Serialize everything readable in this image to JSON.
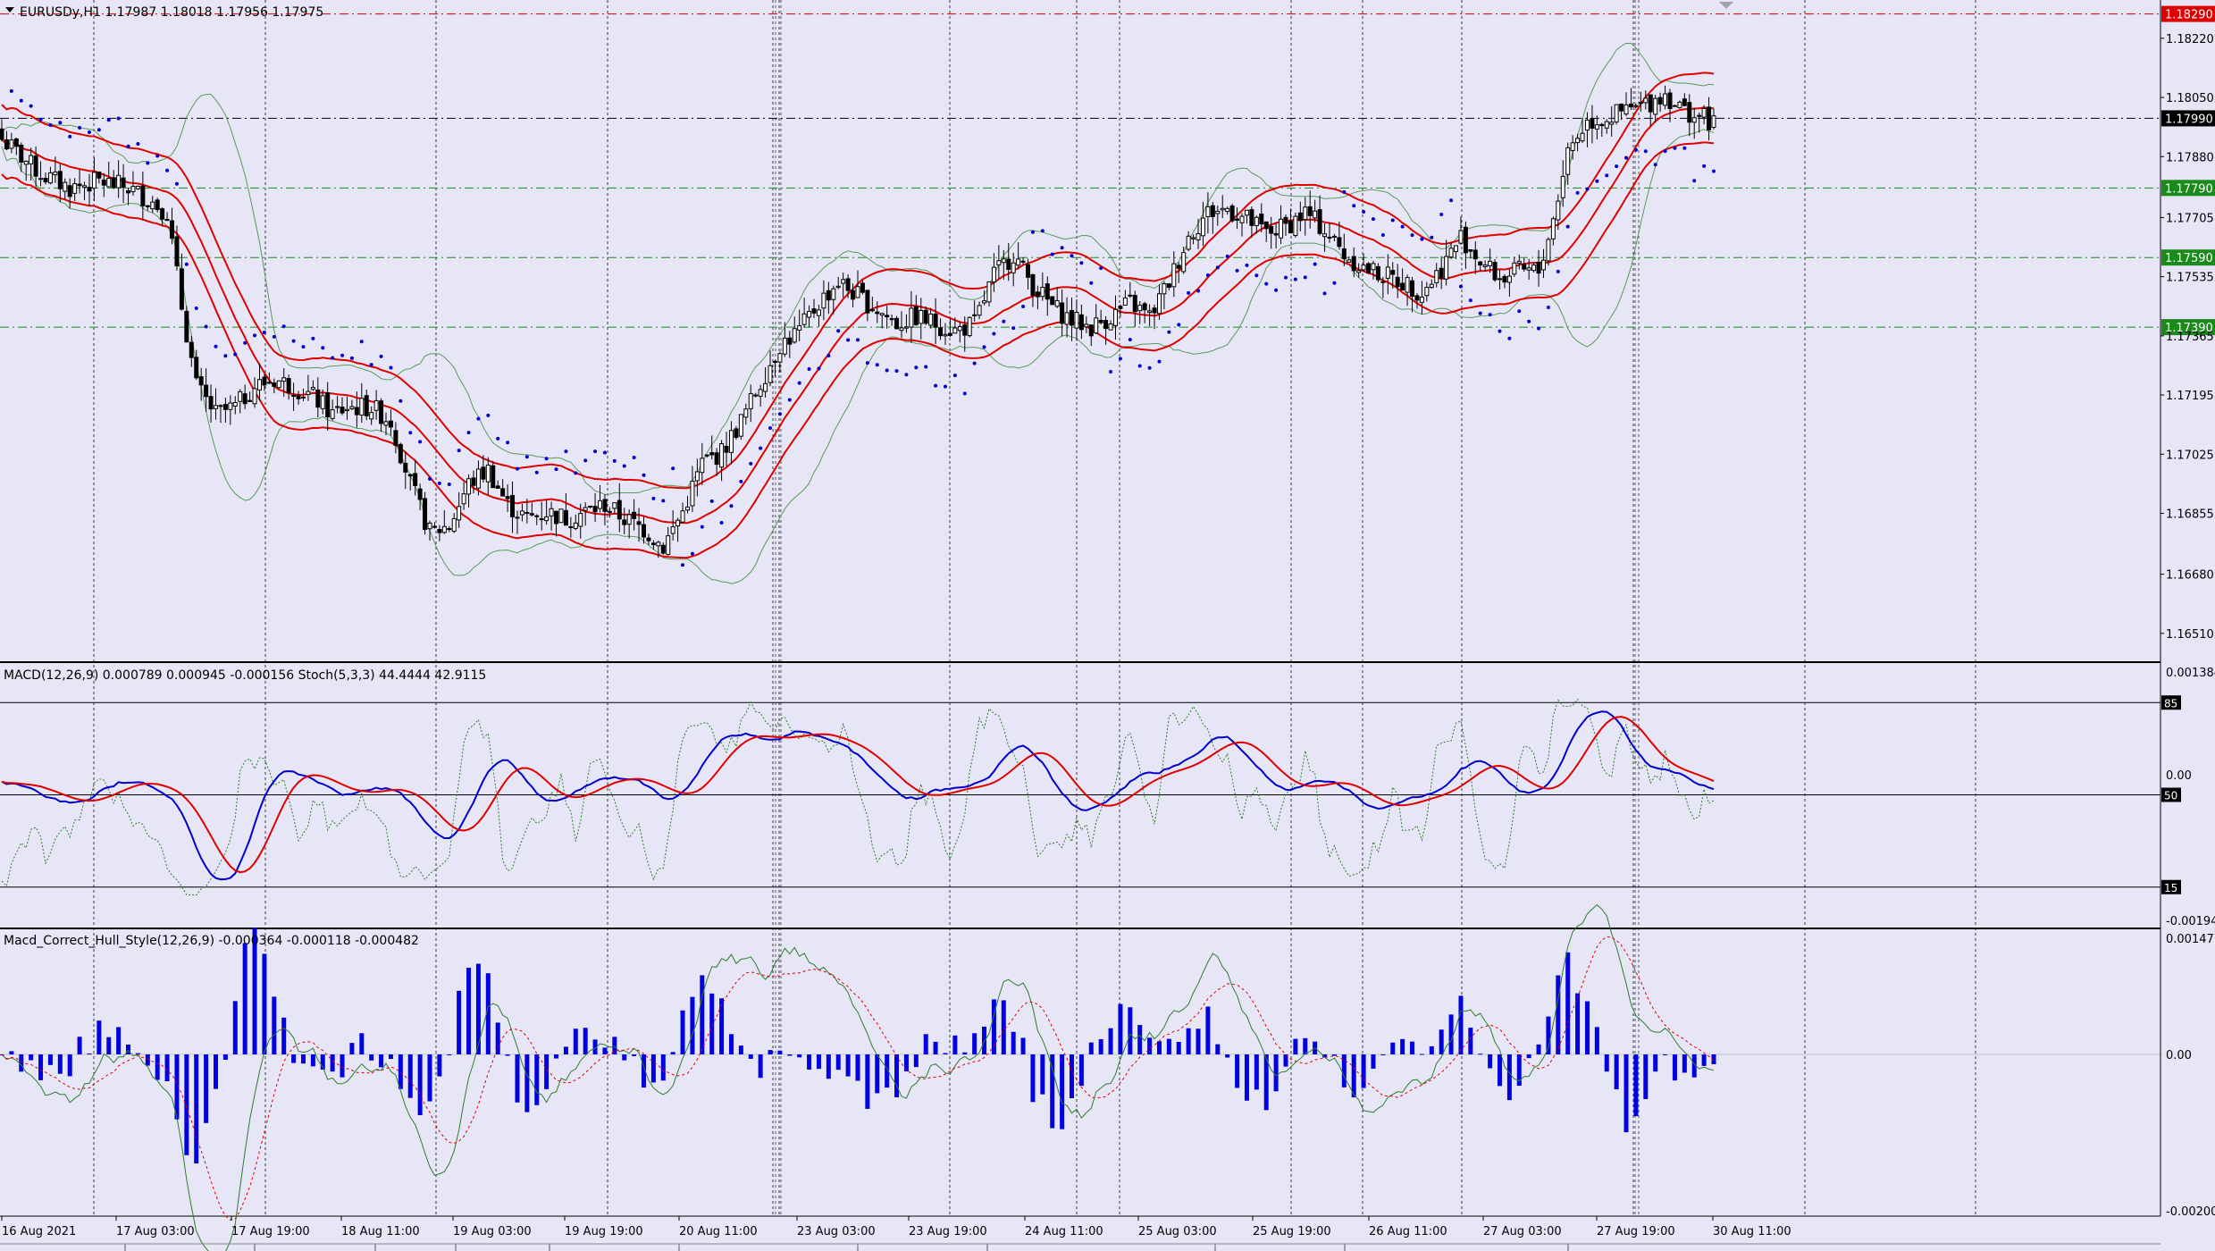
{
  "symbol_header": "EURUSDy,H1  1.17987 1.18018 1.17956 1.17975",
  "macd_header": "MACD(12,26,9) 0.000789 0.000945 -0.000156  Stoch(5,3,3) 44.4444 42.9115",
  "hull_header": "Macd_Correct_Hull_Style(12,26,9) -0.000364 -0.000118 -0.000482",
  "colors": {
    "background": "#e6e6f6",
    "candle_body": "#000000",
    "bollinger": "#5a9a5a",
    "envelope": "#e00000",
    "parabolic_sar": "#0000cc",
    "macd_main": "#0000cc",
    "macd_signal": "#e00000",
    "stoch": "#2e7d2e",
    "histogram": "#0000e0",
    "level_red": "#e00000",
    "level_green": "#1a8a1a",
    "current_price_bg": "#000000"
  },
  "chart_data": [
    {
      "type": "candlestick",
      "panel": "main",
      "title": "EURUSDy,H1",
      "ohlc_last": {
        "open": 1.17987,
        "high": 1.18018,
        "low": 1.17956,
        "close": 1.17975
      },
      "ylim": [
        1.1643,
        1.1833
      ],
      "y_ticks": [
        "1.18220",
        "1.18050",
        "1.17880",
        "1.17705",
        "1.17535",
        "1.17365",
        "1.17195",
        "1.17025",
        "1.16855",
        "1.16680",
        "1.16510"
      ],
      "x_ticks": [
        "16 Aug 2021",
        "17 Aug 03:00",
        "17 Aug 19:00",
        "18 Aug 11:00",
        "19 Aug 03:00",
        "19 Aug 19:00",
        "20 Aug 11:00",
        "23 Aug 03:00",
        "23 Aug 19:00",
        "24 Aug 11:00",
        "25 Aug 03:00",
        "25 Aug 19:00",
        "26 Aug 11:00",
        "27 Aug 03:00",
        "27 Aug 19:00",
        "30 Aug 11:00"
      ],
      "horizontal_levels": [
        {
          "value": 1.1829,
          "label": "1.18290",
          "color": "red"
        },
        {
          "value": 1.1799,
          "label": "1.17990",
          "color": "current"
        },
        {
          "value": 1.1779,
          "label": "1.17790",
          "color": "green"
        },
        {
          "value": 1.1759,
          "label": "1.17590",
          "color": "green"
        },
        {
          "value": 1.1739,
          "label": "1.17390",
          "color": "green"
        }
      ],
      "close_path": [
        [
          0,
          1.1793
        ],
        [
          8,
          1.1783
        ],
        [
          14,
          1.1779
        ],
        [
          20,
          1.1781
        ],
        [
          26,
          1.1779
        ],
        [
          30,
          1.1776
        ],
        [
          34,
          1.1772
        ],
        [
          37,
          1.1745
        ],
        [
          40,
          1.1722
        ],
        [
          44,
          1.1714
        ],
        [
          48,
          1.1716
        ],
        [
          52,
          1.1722
        ],
        [
          56,
          1.1724
        ],
        [
          60,
          1.1722
        ],
        [
          64,
          1.1719
        ],
        [
          68,
          1.1714
        ],
        [
          71,
          1.1716
        ],
        [
          76,
          1.1716
        ],
        [
          80,
          1.1712
        ],
        [
          84,
          1.1694
        ],
        [
          88,
          1.168
        ],
        [
          92,
          1.1682
        ],
        [
          96,
          1.1694
        ],
        [
          100,
          1.1698
        ],
        [
          104,
          1.1688
        ],
        [
          108,
          1.1684
        ],
        [
          112,
          1.1686
        ],
        [
          116,
          1.1684
        ],
        [
          120,
          1.1686
        ],
        [
          124,
          1.1688
        ],
        [
          128,
          1.1684
        ],
        [
          132,
          1.1681
        ],
        [
          136,
          1.1676
        ],
        [
          140,
          1.1686
        ],
        [
          144,
          1.17
        ],
        [
          148,
          1.1703
        ],
        [
          152,
          1.1712
        ],
        [
          156,
          1.1723
        ],
        [
          160,
          1.1734
        ],
        [
          164,
          1.1738
        ],
        [
          168,
          1.1746
        ],
        [
          172,
          1.1752
        ],
        [
          176,
          1.1748
        ],
        [
          180,
          1.1744
        ],
        [
          184,
          1.174
        ],
        [
          188,
          1.1742
        ],
        [
          192,
          1.174
        ],
        [
          196,
          1.1738
        ],
        [
          200,
          1.174
        ],
        [
          204,
          1.1754
        ],
        [
          208,
          1.176
        ],
        [
          212,
          1.1751
        ],
        [
          216,
          1.1745
        ],
        [
          220,
          1.1741
        ],
        [
          224,
          1.1739
        ],
        [
          228,
          1.1742
        ],
        [
          232,
          1.1746
        ],
        [
          236,
          1.1742
        ],
        [
          240,
          1.1752
        ],
        [
          244,
          1.1765
        ],
        [
          248,
          1.1772
        ],
        [
          252,
          1.1773
        ],
        [
          256,
          1.177
        ],
        [
          260,
          1.1766
        ],
        [
          264,
          1.1768
        ],
        [
          268,
          1.1772
        ],
        [
          272,
          1.1767
        ],
        [
          276,
          1.176
        ],
        [
          280,
          1.1756
        ],
        [
          284,
          1.1754
        ],
        [
          288,
          1.1752
        ],
        [
          292,
          1.1749
        ],
        [
          296,
          1.1756
        ],
        [
          300,
          1.1765
        ],
        [
          304,
          1.1758
        ],
        [
          308,
          1.1753
        ],
        [
          312,
          1.1755
        ],
        [
          316,
          1.1755
        ],
        [
          319,
          1.177
        ],
        [
          322,
          1.179
        ],
        [
          326,
          1.1798
        ],
        [
          330,
          1.1799
        ],
        [
          334,
          1.1801
        ],
        [
          338,
          1.1803
        ],
        [
          342,
          1.1806
        ],
        [
          346,
          1.1801
        ],
        [
          350,
          1.1799
        ],
        [
          352,
          1.17975
        ]
      ],
      "series": [
        {
          "name": "Bollinger Bands"
        },
        {
          "name": "Envelopes"
        },
        {
          "name": "Parabolic SAR"
        }
      ]
    },
    {
      "type": "line",
      "panel": "macd_stoch",
      "title": "MACD(12,26,9) / Stoch(5,3,3)",
      "y_ticks": [
        "0.001384",
        "0.00",
        "-0.00194"
      ],
      "levels": [
        "85",
        "50",
        "15"
      ],
      "values": {
        "macd_main": 0.000789,
        "macd_signal": 0.000945,
        "macd_diff": -0.000156,
        "stoch_main": 44.4444,
        "stoch_signal": 42.9115
      }
    },
    {
      "type": "bar",
      "panel": "hull",
      "title": "Macd_Correct_Hull_Style(12,26,9)",
      "y_ticks": [
        "0.001477",
        "0.00",
        "-0.00200"
      ],
      "values": {
        "histogram": -0.000364,
        "line1": -0.000118,
        "line2": -0.000482
      }
    }
  ]
}
